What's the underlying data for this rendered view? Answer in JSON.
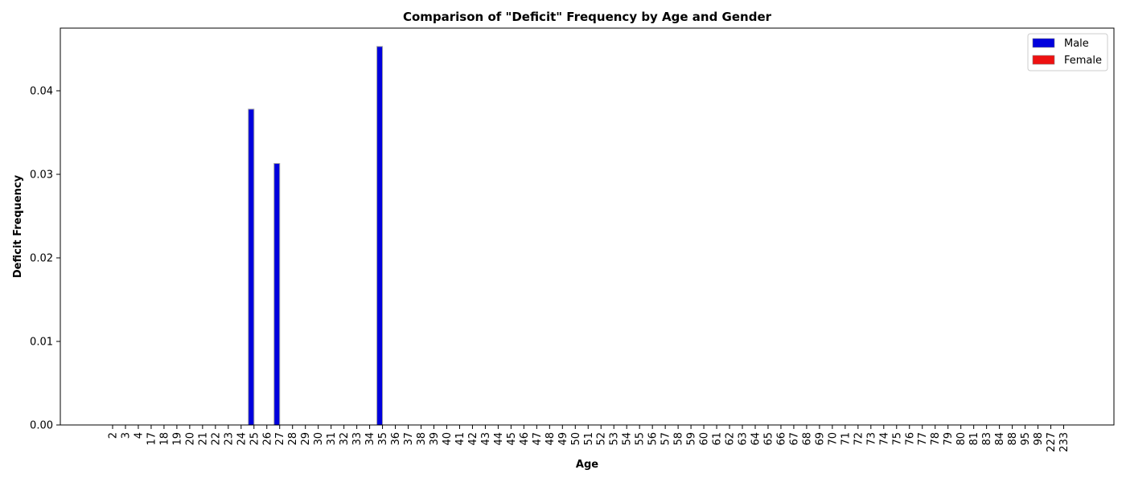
{
  "chart_data": {
    "type": "bar",
    "title": "Comparison of \"Deficit\" Frequency by Age and Gender",
    "xlabel": "Age",
    "ylabel": "Deficit Frequency",
    "ylim": [
      0,
      0.0475
    ],
    "yticks": [
      "0.00",
      "0.01",
      "0.02",
      "0.03",
      "0.04"
    ],
    "grid": false,
    "legend_position": "top-right",
    "categories": [
      "2",
      "3",
      "4",
      "17",
      "18",
      "19",
      "20",
      "21",
      "22",
      "23",
      "24",
      "25",
      "26",
      "27",
      "28",
      "29",
      "30",
      "31",
      "32",
      "33",
      "34",
      "35",
      "36",
      "37",
      "38",
      "39",
      "40",
      "41",
      "42",
      "43",
      "44",
      "45",
      "46",
      "47",
      "48",
      "49",
      "50",
      "51",
      "52",
      "53",
      "54",
      "55",
      "56",
      "57",
      "58",
      "59",
      "60",
      "61",
      "62",
      "63",
      "64",
      "65",
      "66",
      "67",
      "68",
      "69",
      "70",
      "71",
      "72",
      "73",
      "74",
      "75",
      "76",
      "77",
      "78",
      "79",
      "80",
      "81",
      "83",
      "84",
      "88",
      "95",
      "98",
      "227",
      "233"
    ],
    "series": [
      {
        "name": "Male",
        "color": "#0000dd",
        "values": [
          0,
          0,
          0,
          0,
          0,
          0,
          0,
          0,
          0,
          0,
          0,
          0.0378,
          0,
          0.0313,
          0,
          0,
          0,
          0,
          0,
          0,
          0,
          0.0453,
          0,
          0,
          0,
          0,
          0,
          0,
          0,
          0,
          0,
          0,
          0,
          0,
          0,
          0,
          0,
          0,
          0,
          0,
          0,
          0,
          0,
          0,
          0,
          0,
          0,
          0,
          0,
          0,
          0,
          0,
          0,
          0,
          0,
          0,
          0,
          0,
          0,
          0,
          0,
          0,
          0,
          0,
          0,
          0,
          0,
          0,
          0,
          0,
          0,
          0,
          0,
          0,
          0
        ]
      },
      {
        "name": "Female",
        "color": "#ee1111",
        "values": [
          0,
          0,
          0,
          0,
          0,
          0,
          0,
          0,
          0,
          0,
          0,
          0,
          0,
          0,
          0,
          0,
          0,
          0,
          0,
          0,
          0,
          0,
          0,
          0,
          0,
          0,
          0,
          0,
          0,
          0,
          0,
          0,
          0,
          0,
          0,
          0,
          0,
          0,
          0,
          0,
          0,
          0,
          0,
          0,
          0,
          0,
          0,
          0,
          0,
          0,
          0,
          0,
          0,
          0,
          0,
          0,
          0,
          0,
          0,
          0,
          0,
          0,
          0,
          0,
          0,
          0,
          0,
          0,
          0,
          0,
          0,
          0,
          0,
          0,
          0
        ]
      }
    ]
  }
}
